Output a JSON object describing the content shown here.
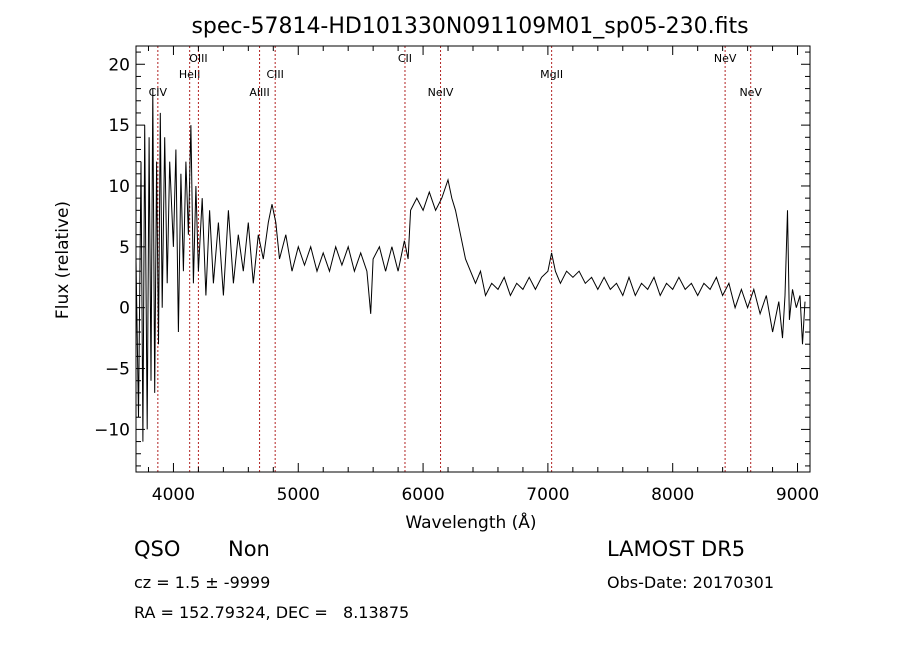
{
  "chart_data": {
    "type": "line",
    "title": "spec-57814-HD101330N091109M01_sp05-230.fits",
    "xlabel": "Wavelength (Å)",
    "ylabel": "Flux (relative)",
    "xlim": [
      3700,
      9100
    ],
    "ylim": [
      -13.5,
      21.5
    ],
    "xticks": [
      4000,
      5000,
      6000,
      7000,
      8000,
      9000
    ],
    "yticks": [
      -10,
      -5,
      0,
      5,
      10,
      15,
      20
    ],
    "line_color": "#000000",
    "marker_color": "#b22222",
    "emission_lines": [
      {
        "name": "CIV",
        "x": 3875,
        "row": "low"
      },
      {
        "name": "HeII",
        "x": 4130,
        "row": "mid"
      },
      {
        "name": "OIII",
        "x": 4200,
        "row": "top"
      },
      {
        "name": "AlIII",
        "x": 4690,
        "row": "low"
      },
      {
        "name": "CIII",
        "x": 4815,
        "row": "mid"
      },
      {
        "name": "CII",
        "x": 5855,
        "row": "top"
      },
      {
        "name": "NeIV",
        "x": 6140,
        "row": "low"
      },
      {
        "name": "MgII",
        "x": 7030,
        "row": "mid"
      },
      {
        "name": "NeV",
        "x": 8420,
        "row": "top"
      },
      {
        "name": "NeV",
        "x": 8625,
        "row": "low"
      }
    ],
    "series": [
      {
        "points": [
          [
            3700,
            4
          ],
          [
            3720,
            -9
          ],
          [
            3740,
            12
          ],
          [
            3755,
            -11
          ],
          [
            3770,
            15
          ],
          [
            3790,
            -10
          ],
          [
            3805,
            14
          ],
          [
            3820,
            -6
          ],
          [
            3835,
            18
          ],
          [
            3850,
            -7
          ],
          [
            3865,
            12
          ],
          [
            3880,
            -3
          ],
          [
            3895,
            16
          ],
          [
            3910,
            0
          ],
          [
            3930,
            14
          ],
          [
            3950,
            2
          ],
          [
            3970,
            12
          ],
          [
            4000,
            5
          ],
          [
            4020,
            13
          ],
          [
            4040,
            -2
          ],
          [
            4060,
            11
          ],
          [
            4080,
            3
          ],
          [
            4100,
            12
          ],
          [
            4120,
            6
          ],
          [
            4140,
            15
          ],
          [
            4160,
            2
          ],
          [
            4180,
            10
          ],
          [
            4200,
            3
          ],
          [
            4230,
            9
          ],
          [
            4260,
            1
          ],
          [
            4290,
            8
          ],
          [
            4320,
            2
          ],
          [
            4360,
            7
          ],
          [
            4400,
            1
          ],
          [
            4440,
            8
          ],
          [
            4480,
            2
          ],
          [
            4520,
            6
          ],
          [
            4560,
            3
          ],
          [
            4600,
            7
          ],
          [
            4640,
            2
          ],
          [
            4680,
            6
          ],
          [
            4720,
            4
          ],
          [
            4760,
            7
          ],
          [
            4790,
            8.5
          ],
          [
            4820,
            7
          ],
          [
            4850,
            4
          ],
          [
            4900,
            6
          ],
          [
            4950,
            3
          ],
          [
            5000,
            5
          ],
          [
            5050,
            3.5
          ],
          [
            5100,
            5
          ],
          [
            5150,
            3
          ],
          [
            5200,
            4.5
          ],
          [
            5250,
            3
          ],
          [
            5300,
            5
          ],
          [
            5350,
            3.5
          ],
          [
            5400,
            5
          ],
          [
            5450,
            3
          ],
          [
            5500,
            4.5
          ],
          [
            5550,
            3
          ],
          [
            5580,
            -0.5
          ],
          [
            5600,
            4
          ],
          [
            5650,
            5
          ],
          [
            5700,
            3
          ],
          [
            5750,
            5
          ],
          [
            5800,
            3
          ],
          [
            5850,
            5.5
          ],
          [
            5880,
            4
          ],
          [
            5900,
            8
          ],
          [
            5950,
            9
          ],
          [
            6000,
            8
          ],
          [
            6050,
            9.5
          ],
          [
            6100,
            8
          ],
          [
            6150,
            9
          ],
          [
            6200,
            10.5
          ],
          [
            6230,
            9
          ],
          [
            6260,
            8
          ],
          [
            6300,
            6
          ],
          [
            6340,
            4
          ],
          [
            6380,
            3
          ],
          [
            6420,
            2
          ],
          [
            6460,
            3
          ],
          [
            6500,
            1
          ],
          [
            6550,
            2
          ],
          [
            6600,
            1.5
          ],
          [
            6650,
            2.5
          ],
          [
            6700,
            1
          ],
          [
            6750,
            2
          ],
          [
            6800,
            1.5
          ],
          [
            6850,
            2.5
          ],
          [
            6900,
            1.5
          ],
          [
            6950,
            2.5
          ],
          [
            7000,
            3
          ],
          [
            7030,
            4.5
          ],
          [
            7060,
            3
          ],
          [
            7100,
            2
          ],
          [
            7150,
            3
          ],
          [
            7200,
            2.5
          ],
          [
            7250,
            3
          ],
          [
            7300,
            2
          ],
          [
            7350,
            2.5
          ],
          [
            7400,
            1.5
          ],
          [
            7450,
            2.5
          ],
          [
            7500,
            1.5
          ],
          [
            7550,
            2
          ],
          [
            7600,
            1
          ],
          [
            7650,
            2.5
          ],
          [
            7700,
            1
          ],
          [
            7750,
            2
          ],
          [
            7800,
            1.5
          ],
          [
            7850,
            2.5
          ],
          [
            7900,
            1
          ],
          [
            7950,
            2
          ],
          [
            8000,
            1.5
          ],
          [
            8050,
            2.5
          ],
          [
            8100,
            1.5
          ],
          [
            8150,
            2
          ],
          [
            8200,
            1
          ],
          [
            8250,
            2
          ],
          [
            8300,
            1.5
          ],
          [
            8350,
            2.5
          ],
          [
            8400,
            1
          ],
          [
            8450,
            2
          ],
          [
            8500,
            0
          ],
          [
            8550,
            1.5
          ],
          [
            8600,
            0
          ],
          [
            8650,
            1.5
          ],
          [
            8700,
            -0.5
          ],
          [
            8750,
            1
          ],
          [
            8800,
            -2
          ],
          [
            8850,
            0.5
          ],
          [
            8880,
            -2.5
          ],
          [
            8900,
            1
          ],
          [
            8920,
            8
          ],
          [
            8935,
            -1
          ],
          [
            8960,
            1.5
          ],
          [
            8990,
            0
          ],
          [
            9020,
            1
          ],
          [
            9040,
            -3
          ],
          [
            9060,
            0.5
          ]
        ]
      }
    ]
  },
  "info": {
    "class_text": "QSO",
    "subclass_text": "Non",
    "survey_text": "LAMOST DR5",
    "cz_text": "cz = 1.5 ± -9999",
    "obsdate_text": "Obs-Date: 20170301",
    "radec_text": "RA = 152.79324, DEC =   8.13875"
  }
}
